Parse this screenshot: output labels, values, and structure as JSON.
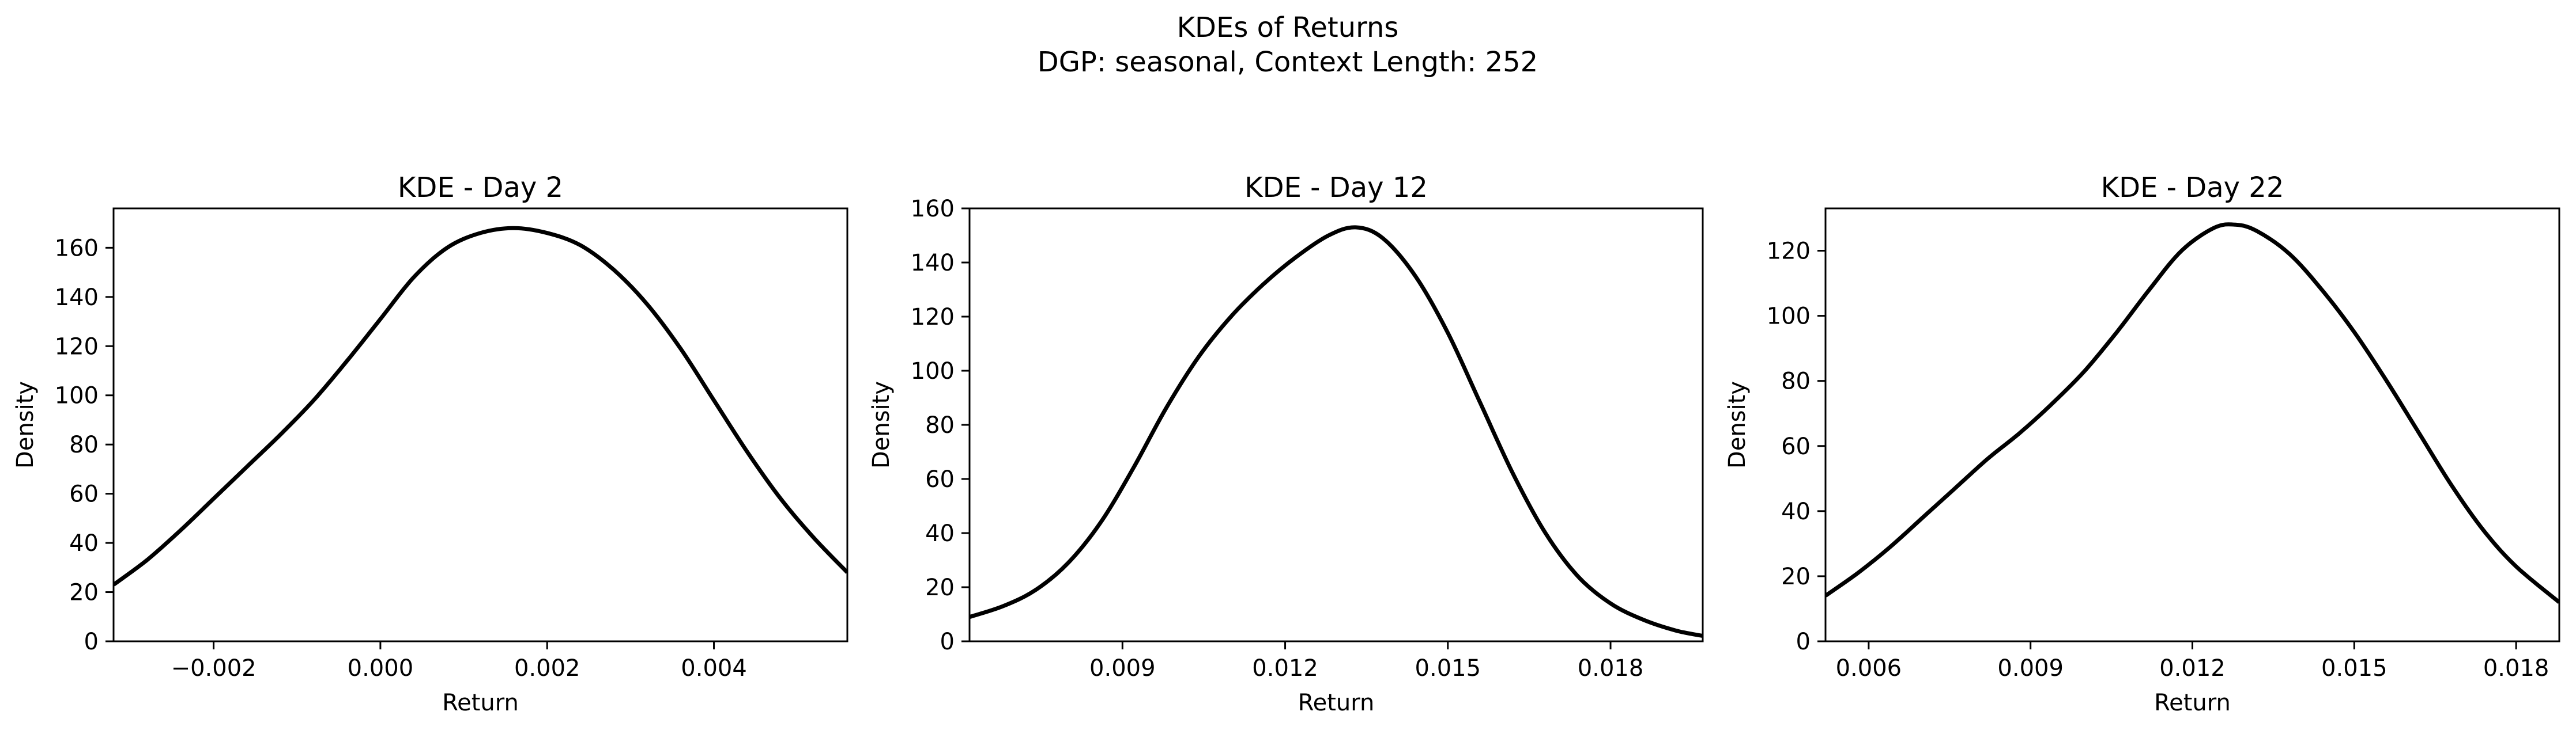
{
  "figure": {
    "title": "KDEs of Returns",
    "subtitle": "DGP: seasonal, Context Length: 252"
  },
  "chart_data": [
    {
      "type": "line",
      "title": "KDE - Day 2",
      "xlabel": "Return",
      "ylabel": "Density",
      "xlim": [
        -0.0032,
        0.0056
      ],
      "ylim": [
        0,
        176
      ],
      "xticks": [
        -0.002,
        0.0,
        0.002,
        0.004
      ],
      "xtick_labels": [
        "−0.002",
        "0.000",
        "0.002",
        "0.004"
      ],
      "yticks": [
        0,
        20,
        40,
        60,
        80,
        100,
        120,
        140,
        160
      ],
      "ytick_labels": [
        "0",
        "20",
        "40",
        "60",
        "80",
        "100",
        "120",
        "140",
        "160"
      ],
      "series": [
        {
          "name": "KDE",
          "color": "#000000",
          "x": [
            -0.0032,
            -0.0028,
            -0.0024,
            -0.002,
            -0.0016,
            -0.0012,
            -0.0008,
            -0.0004,
            0.0,
            0.0004,
            0.0008,
            0.0012,
            0.0016,
            0.002,
            0.0024,
            0.0028,
            0.0032,
            0.0036,
            0.004,
            0.0044,
            0.0048,
            0.0052,
            0.0056
          ],
          "y": [
            23,
            33,
            45,
            58,
            71,
            84,
            98,
            114,
            131,
            148,
            160,
            166,
            168,
            166,
            161,
            151,
            137,
            119,
            98,
            77,
            58,
            42,
            28
          ]
        }
      ]
    },
    {
      "type": "line",
      "title": "KDE - Day 12",
      "xlabel": "Return",
      "ylabel": "Density",
      "xlim": [
        0.00618,
        0.0197
      ],
      "ylim": [
        0,
        160
      ],
      "xticks": [
        0.009,
        0.012,
        0.015,
        0.018
      ],
      "xtick_labels": [
        "0.009",
        "0.012",
        "0.015",
        "0.018"
      ],
      "yticks": [
        0,
        20,
        40,
        60,
        80,
        100,
        120,
        140,
        160
      ],
      "ytick_labels": [
        "0",
        "20",
        "40",
        "60",
        "80",
        "100",
        "120",
        "140",
        "160"
      ],
      "series": [
        {
          "name": "KDE",
          "color": "#000000",
          "x": [
            0.00618,
            0.0068,
            0.0074,
            0.008,
            0.0086,
            0.0092,
            0.0098,
            0.0104,
            0.011,
            0.0116,
            0.0122,
            0.0128,
            0.0133,
            0.0138,
            0.0144,
            0.015,
            0.0156,
            0.0162,
            0.0168,
            0.0174,
            0.018,
            0.0186,
            0.0192,
            0.0197
          ],
          "y": [
            9,
            13,
            19,
            29,
            44,
            64,
            86,
            105,
            120,
            132,
            142,
            150,
            153,
            149,
            135,
            114,
            88,
            62,
            40,
            24,
            14,
            8,
            4,
            2
          ]
        }
      ]
    },
    {
      "type": "line",
      "title": "KDE - Day 22",
      "xlabel": "Return",
      "ylabel": "Density",
      "xlim": [
        0.0052,
        0.0188
      ],
      "ylim": [
        0,
        133
      ],
      "xticks": [
        0.006,
        0.009,
        0.012,
        0.015,
        0.018
      ],
      "xtick_labels": [
        "0.006",
        "0.009",
        "0.012",
        "0.015",
        "0.018"
      ],
      "yticks": [
        0,
        20,
        40,
        60,
        80,
        100,
        120
      ],
      "ytick_labels": [
        "0",
        "20",
        "40",
        "60",
        "80",
        "100",
        "120"
      ],
      "series": [
        {
          "name": "KDE",
          "color": "#000000",
          "x": [
            0.0052,
            0.0058,
            0.0064,
            0.007,
            0.0076,
            0.0082,
            0.0088,
            0.0094,
            0.01,
            0.0106,
            0.0112,
            0.0118,
            0.0124,
            0.0128,
            0.0132,
            0.0138,
            0.0144,
            0.015,
            0.0156,
            0.0162,
            0.0168,
            0.0174,
            0.018,
            0.0188
          ],
          "y": [
            14,
            21,
            29,
            38,
            47,
            56,
            64,
            73,
            83,
            95,
            108,
            120,
            127,
            128,
            126,
            119,
            108,
            95,
            80,
            64,
            48,
            34,
            23,
            12
          ]
        }
      ]
    }
  ]
}
